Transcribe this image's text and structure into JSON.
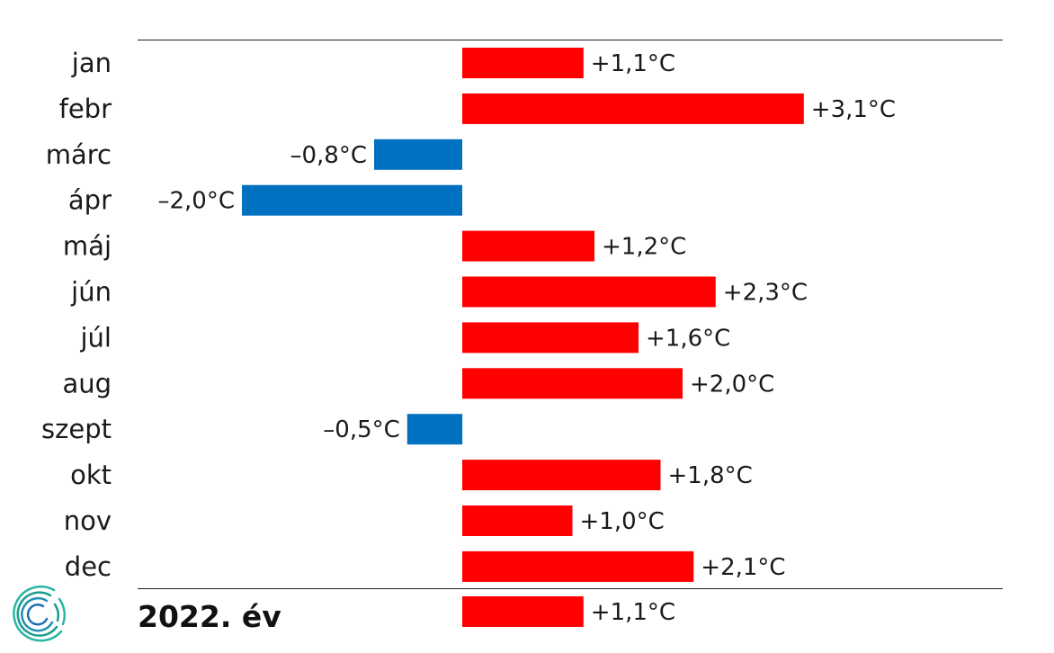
{
  "chart_data": {
    "type": "bar",
    "orientation": "horizontal",
    "categories": [
      "jan",
      "febr",
      "márc",
      "ápr",
      "máj",
      "jún",
      "júl",
      "aug",
      "szept",
      "okt",
      "nov",
      "dec"
    ],
    "values": [
      1.1,
      3.1,
      -0.8,
      -2.0,
      1.2,
      2.3,
      1.6,
      2.0,
      -0.5,
      1.8,
      1.0,
      2.1
    ],
    "value_labels": [
      "+1,1°C",
      "+3,1°C",
      "–0,8°C",
      "–2,0°C",
      "+1,2°C",
      "+2,3°C",
      "+1,6°C",
      "+2,0°C",
      "–0,5°C",
      "+1,8°C",
      "+1,0°C",
      "+2,1°C"
    ],
    "summary": {
      "label": "2022. év",
      "value": 1.1,
      "value_label": "+1,1°C"
    },
    "title": "",
    "xlabel": "",
    "ylabel": "",
    "xlim": [
      -2.0,
      5.0
    ],
    "grid": false,
    "legend": "none",
    "colors": {
      "positive": "#ff0000",
      "negative": "#0070c0"
    }
  },
  "logo": {
    "name": "ksh-logo-icon",
    "colors": [
      "#1a9e8f",
      "#2cb5a5",
      "#1f6fb0"
    ]
  }
}
